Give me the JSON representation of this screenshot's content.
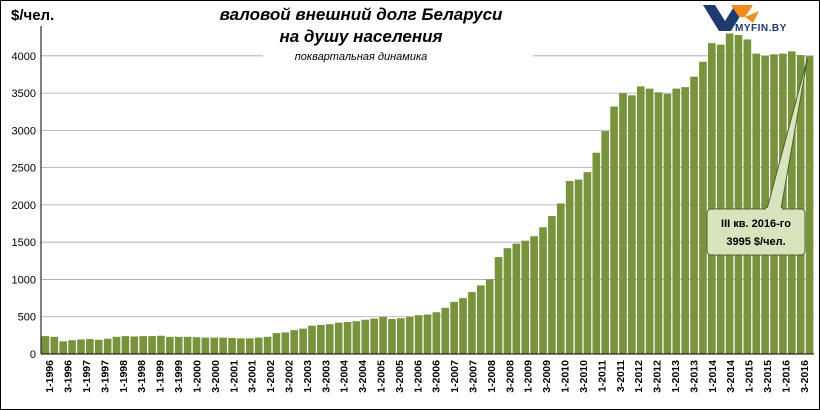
{
  "brand": {
    "logo_text": "MYFIN.BY"
  },
  "chart_data": {
    "type": "bar",
    "title": "валовой внешний долг Беларуси",
    "title_line2": "на душу населения",
    "subtitle": "поквартальная динамика",
    "ylabel": "$/чел.",
    "ylim": [
      0,
      4400
    ],
    "yticks": [
      "0",
      "500",
      "1000",
      "1500",
      "2000",
      "2500",
      "3000",
      "3500",
      "4000"
    ],
    "grid": true,
    "bar_color": "#77933c",
    "x_tick_labels": [
      "1-1996",
      "3-1996",
      "1-1997",
      "3-1997",
      "1-1998",
      "3-1998",
      "1-1999",
      "3-1999",
      "1-2000",
      "3-2000",
      "1-2001",
      "3-2001",
      "1-2002",
      "3-2002",
      "1-2003",
      "3-2003",
      "1-2004",
      "3-2004",
      "1-2005",
      "3-2005",
      "1-2006",
      "3-2006",
      "1-2007",
      "3-2007",
      "1-2008",
      "3-2008",
      "1-2009",
      "3-2009",
      "1-2010",
      "3-2010",
      "1-2011",
      "3-2011",
      "1-2012",
      "3-2012",
      "1-2013",
      "3-2013",
      "1-2014",
      "3-2014",
      "1-2015",
      "3-2015",
      "1-2016",
      "3-2016"
    ],
    "values": [
      240,
      230,
      170,
      185,
      195,
      200,
      190,
      205,
      230,
      240,
      235,
      240,
      240,
      245,
      230,
      230,
      230,
      225,
      220,
      220,
      220,
      215,
      210,
      210,
      220,
      230,
      280,
      290,
      320,
      340,
      380,
      390,
      400,
      420,
      430,
      440,
      460,
      475,
      500,
      470,
      480,
      500,
      520,
      530,
      560,
      620,
      700,
      750,
      830,
      920,
      1000,
      1300,
      1420,
      1480,
      1520,
      1580,
      1700,
      1850,
      2020,
      2320,
      2340,
      2440,
      2700,
      2990,
      3320,
      3500,
      3470,
      3590,
      3560,
      3510,
      3490,
      3560,
      3580,
      3720,
      3920,
      4170,
      4150,
      4300,
      4280,
      4220,
      4030,
      4000,
      4020,
      4030,
      4060,
      4010,
      3995
    ],
    "annotation": {
      "line1": "III кв. 2016-го",
      "line2": "3995 $/чел."
    }
  }
}
